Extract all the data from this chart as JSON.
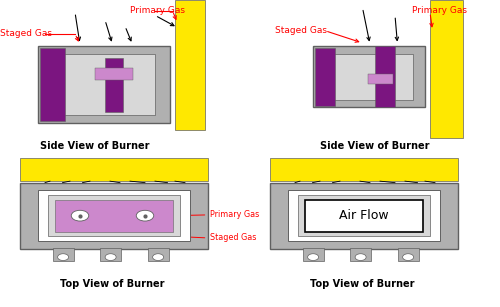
{
  "bg_color": "#ffffff",
  "yellow": "#FFE800",
  "gray": "#B0B0B0",
  "gray_light": "#C8C8C8",
  "gray_inner": "#D8D8D8",
  "dark_gray": "#606060",
  "purple_dark": "#7B1580",
  "purple_light": "#CC88CC",
  "red_text": "#FF0000",
  "black": "#000000",
  "white": "#ffffff",
  "label_side_view": "Side View of Burner",
  "label_top_view": "Top View of Burner",
  "label_staged_gas": "Staged Gas",
  "label_primary_gas": "Primary Gas",
  "label_air_flow": "Air Flow"
}
